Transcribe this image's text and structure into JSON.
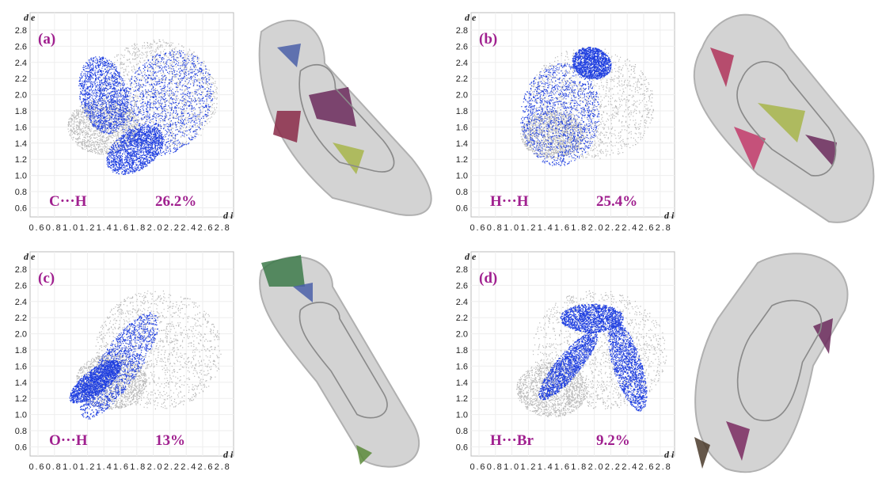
{
  "axes": {
    "y_label": "d e",
    "x_label": "d i",
    "yticks": [
      "2.8",
      "2.6",
      "2.4",
      "2.2",
      "2.0",
      "1.8",
      "1.6",
      "1.4",
      "1.2",
      "1.0",
      "0.8",
      "0.6"
    ],
    "xticks": [
      "0.6",
      "0.8",
      "1.0",
      "1.2",
      "1.4",
      "1.6",
      "1.8",
      "2.0",
      "2.2",
      "2.4",
      "2.6",
      "2.8"
    ]
  },
  "panels": [
    {
      "letter": "(a)",
      "contact": "C···H",
      "percent": "26.2%"
    },
    {
      "letter": "(b)",
      "contact": "H···H",
      "percent": "25.4%"
    },
    {
      "letter": "(c)",
      "contact": "O···H",
      "percent": "13%"
    },
    {
      "letter": "(d)",
      "contact": "H···Br",
      "percent": "9.2%"
    }
  ]
}
